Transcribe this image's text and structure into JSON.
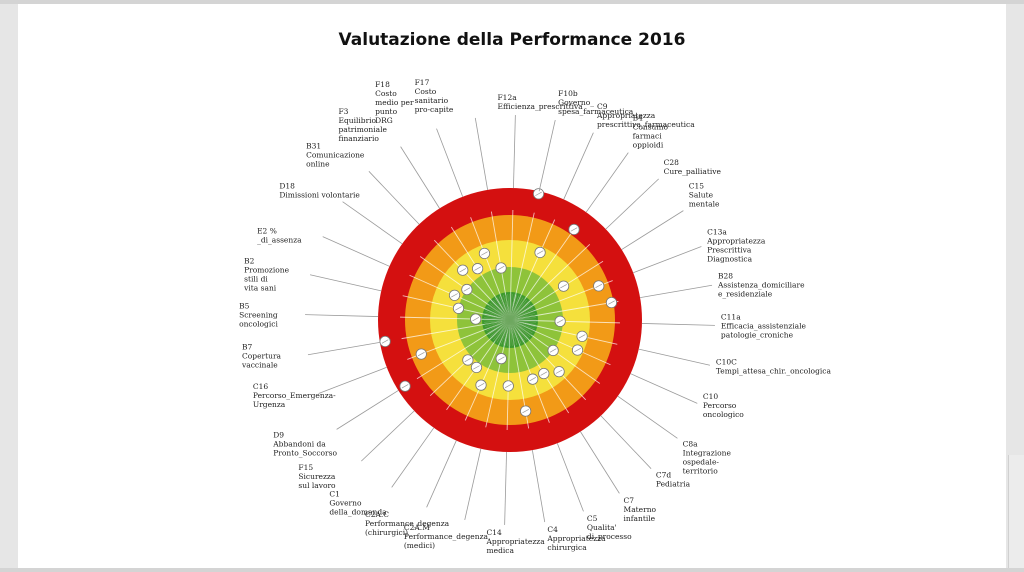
{
  "chart_data": {
    "type": "radar-target",
    "title": "Valutazione della Performance 2016",
    "rings": [
      {
        "band": "red",
        "color": "#d41010"
      },
      {
        "band": "orange",
        "color": "#f29a17"
      },
      {
        "band": "yellow",
        "color": "#f5e03c"
      },
      {
        "band": "light-green",
        "color": "#8ec33a"
      },
      {
        "band": "dark-green",
        "color": "#3d9a2e"
      }
    ],
    "scale": {
      "min": 0,
      "max": 5,
      "center": 0,
      "outer": 5
    },
    "indicators": [
      {
        "label": [
          "F12a",
          "Efficienza_prescrittiva"
        ],
        "value": null
      },
      {
        "label": [
          "F10b",
          "Governo_",
          "spesa_farmaceutica"
        ],
        "value": 4.9
      },
      {
        "label": [
          "C9",
          "Appropriatezza",
          "prescrittiva_farmaceutica"
        ],
        "value": 2.8
      },
      {
        "label": [
          "B4",
          "Consumo",
          "farmaci",
          "oppioidi"
        ],
        "value": 4.2
      },
      {
        "label": [
          "C28",
          "Cure_palliative"
        ],
        "value": null
      },
      {
        "label": [
          "C15",
          "Salute",
          "mentale"
        ],
        "value": 2.4
      },
      {
        "label": [
          "C13a",
          "Appropriatezza",
          "Prescrittiva",
          "Diagnostica"
        ],
        "value": 3.6
      },
      {
        "label": [
          "B28",
          "Assistenza_domiciliare",
          "e_residenziale"
        ],
        "value": 3.9
      },
      {
        "label": [
          "C11a",
          "Efficacia_assistenziale",
          "patologie_croniche"
        ],
        "value": 1.9
      },
      {
        "label": [
          "C10C",
          "Tempi_attesa_chir._oncologica"
        ],
        "value": 2.8
      },
      {
        "label": [
          "C10",
          "Percorso",
          "oncologico"
        ],
        "value": 2.8
      },
      {
        "label": [
          "C8a",
          "Integrazione",
          "ospedale-",
          "territorio"
        ],
        "value": 2.0
      },
      {
        "label": [
          "C7d",
          "Pediatria"
        ],
        "value": 2.7
      },
      {
        "label": [
          "C7",
          "Materno",
          "infantile"
        ],
        "value": 2.4
      },
      {
        "label": [
          "C5",
          "Qualita'",
          "di_processo"
        ],
        "value": 2.4
      },
      {
        "label": [
          "C4",
          "Appropriatezza",
          "chirurgica"
        ],
        "value": 3.5
      },
      {
        "label": [
          "C14",
          "Appropriatezza",
          "medica"
        ],
        "value": 2.5
      },
      {
        "label": [
          "C2A.M",
          "Performance_degenza",
          "(medici)"
        ],
        "value": 1.5
      },
      {
        "label": [
          "C2A.C",
          "Performance_degenza",
          "(chirurgici)"
        ],
        "value": 2.7
      },
      {
        "label": [
          "C1",
          "Governo",
          "della_domanda"
        ],
        "value": 2.2
      },
      {
        "label": [
          "F15",
          "Sicurezza",
          "sul lavoro"
        ],
        "value": 2.2
      },
      {
        "label": [
          "D9",
          "Abbandoni da",
          "Pronto_Soccorso"
        ],
        "value": 4.7
      },
      {
        "label": [
          "C16",
          "Percorso_Emergenza-",
          "Urgenza"
        ],
        "value": 3.6
      },
      {
        "label": [
          "B7",
          "Copertura",
          "vaccinale"
        ],
        "value": 4.8
      },
      {
        "label": [
          "B5",
          "Screening",
          "oncologici"
        ],
        "value": 1.3
      },
      {
        "label": [
          "B2",
          "Promozione",
          "stili di",
          "vita sani"
        ],
        "value": 2.0
      },
      {
        "label": [
          "E2 %",
          "_di_assenza"
        ],
        "value": 2.3
      },
      {
        "label": [
          "D18",
          "Dimissioni volontarie"
        ],
        "value": 2.0
      },
      {
        "label": [
          "B31",
          "Comunicazione",
          "online"
        ],
        "value": 2.6
      },
      {
        "label": [
          "F3",
          "Equilibrio",
          "patrimoniale",
          "finanziario"
        ],
        "value": 2.3
      },
      {
        "label": [
          "F18",
          "Costo",
          "medio per",
          "punto",
          "DRG"
        ],
        "value": 2.7
      },
      {
        "label": [
          "F17",
          "Costo",
          "sanitario",
          "pro-capite"
        ],
        "value": 2.0
      }
    ]
  }
}
